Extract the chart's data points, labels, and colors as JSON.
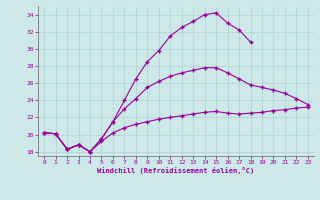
{
  "xlabel": "Windchill (Refroidissement éolien,°C)",
  "bg_color": "#cce8e8",
  "line_color": "#990099",
  "xlim": [
    -0.5,
    23.5
  ],
  "ylim": [
    17.5,
    35.0
  ],
  "yticks": [
    18,
    20,
    22,
    24,
    26,
    28,
    30,
    32,
    34
  ],
  "xticks": [
    0,
    1,
    2,
    3,
    4,
    5,
    6,
    7,
    8,
    9,
    10,
    11,
    12,
    13,
    14,
    15,
    16,
    17,
    18,
    19,
    20,
    21,
    22,
    23
  ],
  "line1_x": [
    0,
    1,
    2,
    3,
    4,
    5,
    6,
    7,
    8,
    9,
    10,
    11,
    12,
    13,
    14,
    15,
    16,
    17,
    18
  ],
  "line1_y": [
    20.2,
    20.1,
    18.3,
    18.8,
    18.0,
    19.5,
    21.5,
    24.0,
    26.5,
    28.5,
    29.8,
    31.5,
    32.5,
    33.2,
    34.0,
    34.2,
    33.0,
    32.2,
    30.8
  ],
  "line2_x": [
    0,
    1,
    2,
    3,
    4,
    5,
    6,
    7,
    8,
    9,
    10,
    11,
    12,
    13,
    14,
    15,
    16,
    17,
    18,
    19,
    20,
    21,
    22,
    23
  ],
  "line2_y": [
    20.2,
    20.1,
    18.3,
    18.8,
    18.0,
    19.5,
    21.5,
    23.0,
    24.2,
    25.5,
    26.2,
    26.8,
    27.2,
    27.5,
    27.8,
    27.8,
    27.2,
    26.5,
    25.8,
    25.5,
    25.2,
    24.8,
    24.2,
    23.5
  ],
  "line3_x": [
    0,
    1,
    2,
    3,
    4,
    5,
    6,
    7,
    8,
    9,
    10,
    11,
    12,
    13,
    14,
    15,
    16,
    17,
    18,
    19,
    20,
    21,
    22,
    23
  ],
  "line3_y": [
    20.2,
    20.1,
    18.3,
    18.8,
    18.0,
    19.2,
    20.2,
    20.8,
    21.2,
    21.5,
    21.8,
    22.0,
    22.2,
    22.4,
    22.6,
    22.7,
    22.5,
    22.4,
    22.5,
    22.6,
    22.8,
    22.9,
    23.1,
    23.2
  ]
}
